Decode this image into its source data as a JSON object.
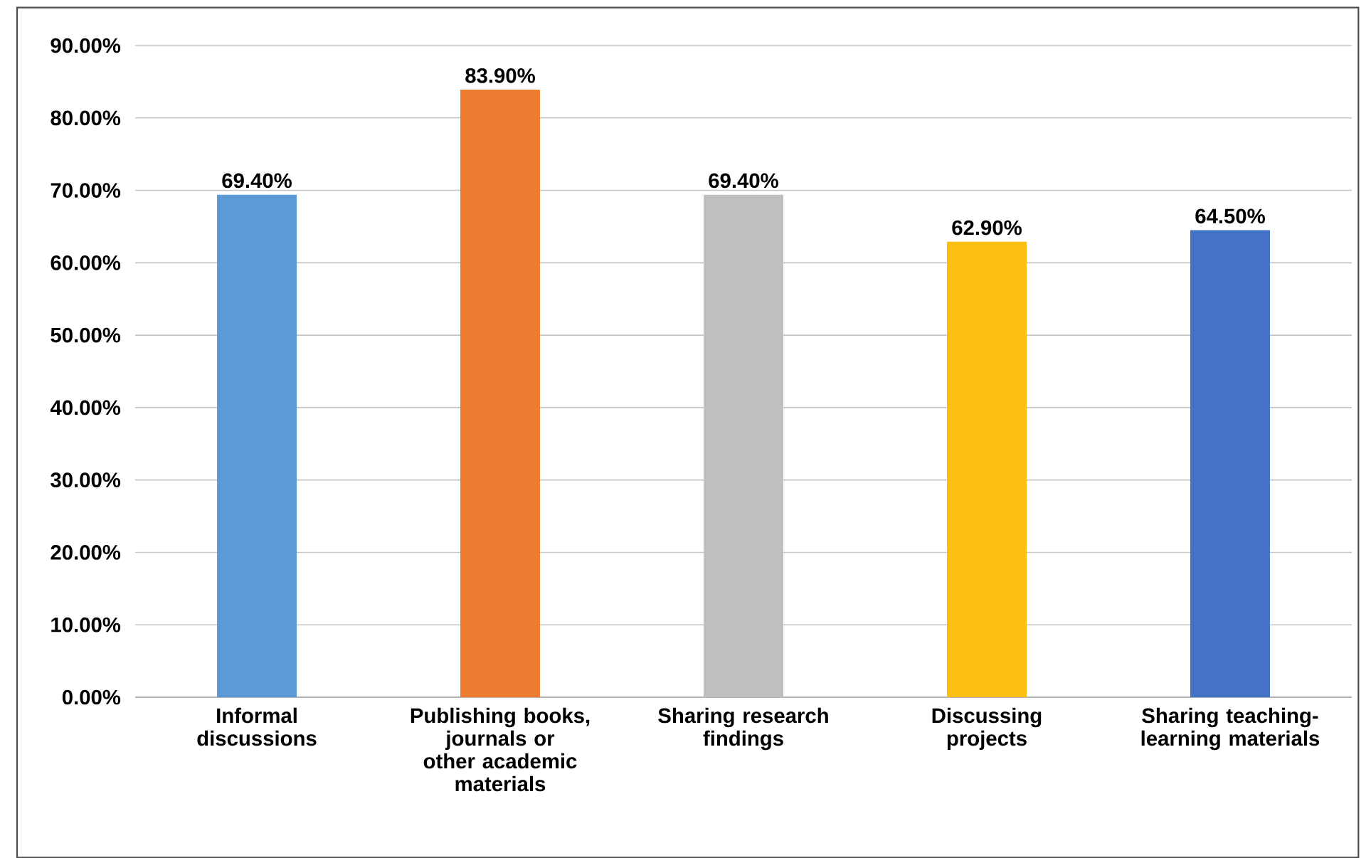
{
  "chart_data": {
    "type": "bar",
    "categories": [
      "Informal discussions",
      "Publishing books, journals or other academic materials",
      "Sharing research findings",
      "Discussing projects",
      "Sharing teaching-learning materials"
    ],
    "values": [
      69.4,
      83.9,
      69.4,
      62.9,
      64.5
    ],
    "value_labels": [
      "69.40%",
      "83.90%",
      "69.40%",
      "62.90%",
      "64.50%"
    ],
    "colors": [
      "#5b9bd5",
      "#ed7d31",
      "#bfbfbf",
      "#fbbf14",
      "#4472c4"
    ],
    "ylim": [
      0,
      90
    ],
    "yticks": [
      {
        "value": 0,
        "label": "0.00%"
      },
      {
        "value": 10,
        "label": "10.00%"
      },
      {
        "value": 20,
        "label": "20.00%"
      },
      {
        "value": 30,
        "label": "30.00%"
      },
      {
        "value": 40,
        "label": "40.00%"
      },
      {
        "value": 50,
        "label": "50.00%"
      },
      {
        "value": 60,
        "label": "60.00%"
      },
      {
        "value": 70,
        "label": "70.00%"
      },
      {
        "value": 80,
        "label": "80.00%"
      },
      {
        "value": 90,
        "label": "90.00%"
      }
    ],
    "grid": "y"
  }
}
